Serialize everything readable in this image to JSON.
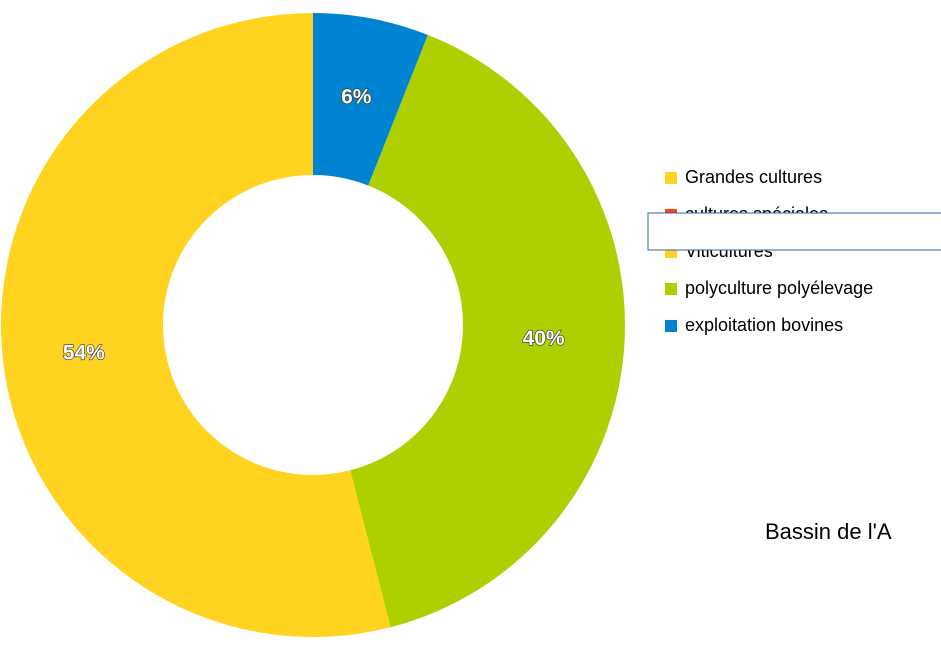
{
  "chart_data": {
    "type": "pie",
    "title": "Bassin de l'A",
    "categories": [
      "Grandes cultures",
      "cultures spéciales",
      "Viticultures",
      "polyculture polyélevage",
      "exploitation bovines"
    ],
    "values": [
      54,
      0,
      0,
      40,
      6
    ],
    "value_labels": [
      "54%",
      null,
      null,
      "40%",
      "6%"
    ],
    "colors": [
      "#ffd320",
      "#ff420e",
      "#ffd320",
      "#aecf00",
      "#0084d1"
    ],
    "donut": true,
    "legend": "right"
  }
}
